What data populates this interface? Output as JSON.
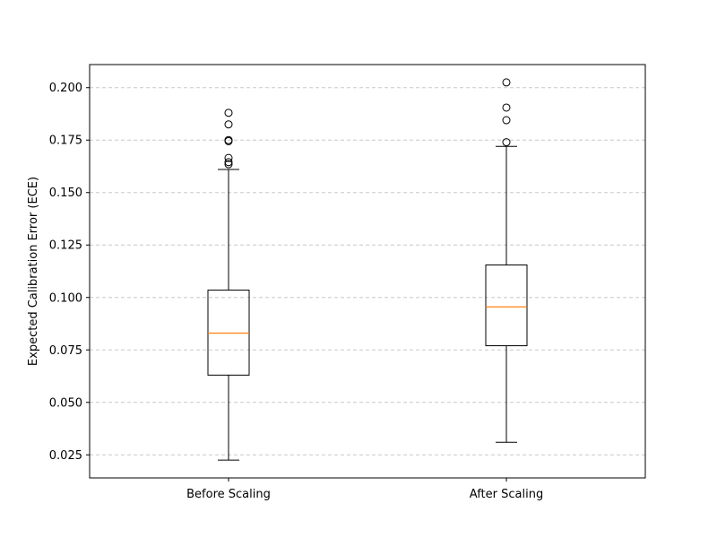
{
  "chart_data": {
    "type": "boxplot",
    "title": "",
    "xlabel": "",
    "ylabel": "Expected Calibration Error (ECE)",
    "ylim": [
      0.014,
      0.211
    ],
    "yticks": [
      0.025,
      0.05,
      0.075,
      0.1,
      0.125,
      0.15,
      0.175,
      0.2
    ],
    "ytick_labels": [
      "0.025",
      "0.050",
      "0.075",
      "0.100",
      "0.125",
      "0.150",
      "0.175",
      "0.200"
    ],
    "grid": "y-dashed",
    "colors": {
      "box": "#000000",
      "median": "#ff7f0e",
      "grid": "#c8c8c8"
    },
    "categories": [
      "Before Scaling",
      "After Scaling"
    ],
    "boxes": [
      {
        "whisker_low": 0.0225,
        "q1": 0.063,
        "median": 0.083,
        "q3": 0.1035,
        "whisker_high": 0.161,
        "outliers": [
          0.1635,
          0.1645,
          0.1665,
          0.1745,
          0.175,
          0.1825,
          0.188
        ]
      },
      {
        "whisker_low": 0.031,
        "q1": 0.077,
        "median": 0.0955,
        "q3": 0.1155,
        "whisker_high": 0.172,
        "outliers": [
          0.174,
          0.1845,
          0.1905,
          0.2025
        ]
      }
    ]
  }
}
